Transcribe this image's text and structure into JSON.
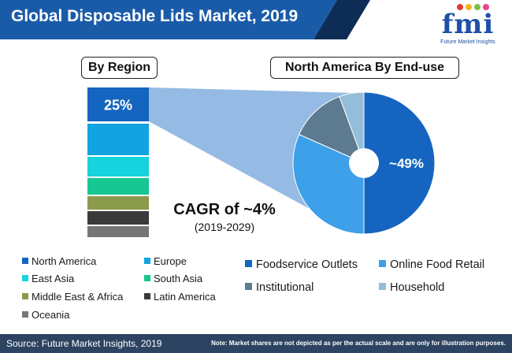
{
  "header": {
    "title": "Global Disposable Lids Market, 2019",
    "logo_mark": "fmi",
    "logo_tagline": "Future Market Insights"
  },
  "colors": {
    "title_bar": "#1a5ba8",
    "title_accent": "#0d2c56",
    "footer": "#2c4361"
  },
  "chart_data": [
    {
      "type": "bar",
      "subtype": "stacked-column",
      "title": "By Region",
      "data_labels": [
        "25%"
      ],
      "segments": [
        {
          "name": "North America",
          "label": "25%",
          "color": "#1565c0"
        },
        {
          "name": "Europe",
          "color": "#12a3e0"
        },
        {
          "name": "East Asia",
          "color": "#17d3de"
        },
        {
          "name": "South Asia",
          "color": "#16c792"
        },
        {
          "name": "Middle East & Africa",
          "color": "#8c9a4c"
        },
        {
          "name": "Latin America",
          "color": "#3a3a3a"
        },
        {
          "name": "Oceania",
          "color": "#767676"
        }
      ]
    },
    {
      "type": "pie",
      "subtype": "donut",
      "title": "North America By End-use",
      "slices": [
        {
          "name": "Foodservice Outlets",
          "value": 49,
          "label": "~49%",
          "color": "#1565c0"
        },
        {
          "name": "Online Food Retail",
          "value": 31,
          "color": "#3ea0e8"
        },
        {
          "name": "Institutional",
          "value": 12.5,
          "color": "#5c7a90"
        },
        {
          "name": "Household",
          "value": 5.5,
          "color": "#93bdd9"
        }
      ],
      "start_angle_deg": 0,
      "direction": "clockwise"
    }
  ],
  "cagr": {
    "value": "CAGR of ~4%",
    "period": "(2019-2029)"
  },
  "legend_region": [
    {
      "label": "North America",
      "color": "#1565c0"
    },
    {
      "label": "Europe",
      "color": "#12a3e0"
    },
    {
      "label": "East Asia",
      "color": "#17d3de"
    },
    {
      "label": "South Asia",
      "color": "#16c792"
    },
    {
      "label": "Middle East & Africa",
      "color": "#8c9a4c"
    },
    {
      "label": "Latin America",
      "color": "#3a3a3a"
    },
    {
      "label": "Oceania",
      "color": "#767676"
    }
  ],
  "legend_enduse": [
    {
      "label": "Foodservice Outlets",
      "color": "#1565c0"
    },
    {
      "label": "Online Food Retail",
      "color": "#3ea0e8"
    },
    {
      "label": "Institutional",
      "color": "#5c7a90"
    },
    {
      "label": "Household",
      "color": "#93bdd9"
    }
  ],
  "footer": {
    "source": "Source: Future Market Insights, 2019",
    "note": "Note: Market shares are not depicted as per the actual scale and are only for illustration purposes."
  }
}
